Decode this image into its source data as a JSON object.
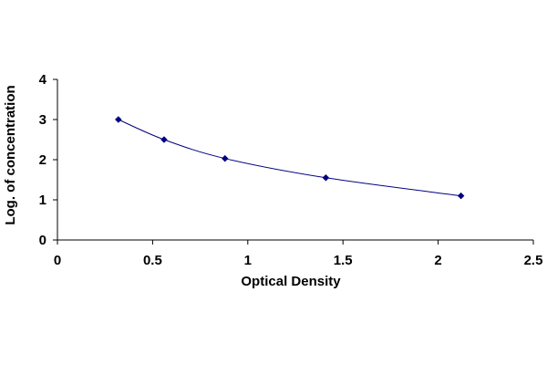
{
  "chart_data": {
    "type": "scatter",
    "xlabel": "Optical Density",
    "ylabel": "Log. of concentration",
    "xlim": [
      0,
      2.5
    ],
    "ylim": [
      0,
      4
    ],
    "x_ticks": [
      "0",
      "0.5",
      "1",
      "1.5",
      "2",
      "2.5"
    ],
    "y_ticks": [
      "0",
      "1",
      "2",
      "3",
      "4"
    ],
    "grid": false,
    "legend": "none",
    "series": [
      {
        "x": [
          0.32,
          0.56,
          0.88,
          1.41,
          2.12
        ],
        "y": [
          3.0,
          2.5,
          2.03,
          1.55,
          1.1
        ],
        "marker": "diamond",
        "trendline": "smooth",
        "color": "#000080"
      }
    ]
  }
}
